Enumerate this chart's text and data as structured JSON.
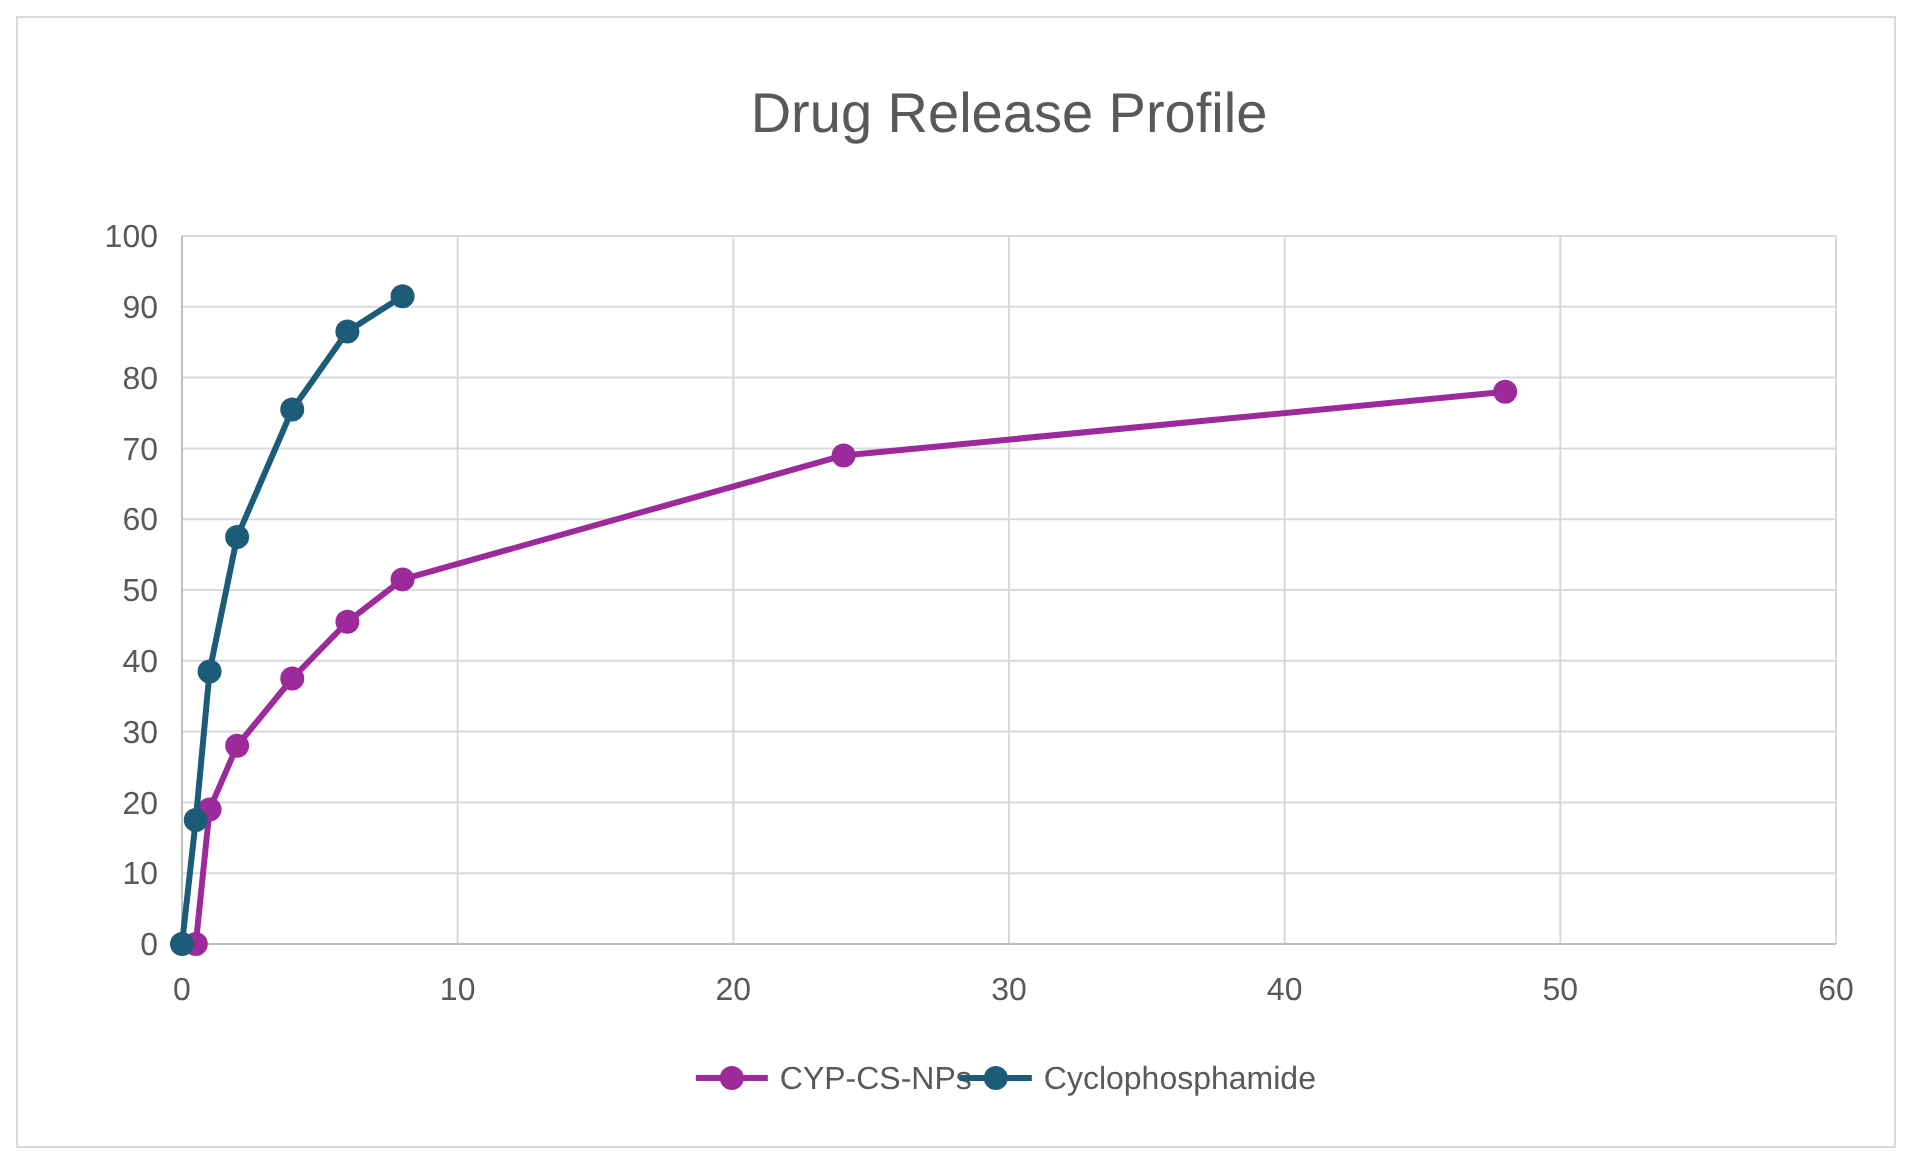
{
  "chart_data": {
    "type": "line",
    "title": "Drug Release Profile",
    "xlim": [
      0,
      60
    ],
    "xticks": [
      0,
      10,
      20,
      30,
      40,
      50,
      60
    ],
    "ylim": [
      0,
      100
    ],
    "yticks": [
      0,
      10,
      20,
      30,
      40,
      50,
      60,
      70,
      80,
      90,
      100
    ],
    "grid": true,
    "legend": "bottom",
    "marker": "circle",
    "line_style": "solid",
    "series": [
      {
        "name": "CYP-CS-NPs",
        "color": "#9c2a9a",
        "x": [
          0.5,
          1,
          2,
          4,
          6,
          8,
          24,
          48
        ],
        "values": [
          0,
          19,
          28,
          37.5,
          45.5,
          51.5,
          69,
          78
        ]
      },
      {
        "name": "Cyclophosphamide",
        "color": "#1d5c78",
        "x": [
          0,
          0.5,
          1,
          2,
          4,
          6,
          8
        ],
        "values": [
          0,
          17.5,
          38.5,
          57.5,
          75.5,
          86.5,
          91.5
        ]
      }
    ]
  }
}
